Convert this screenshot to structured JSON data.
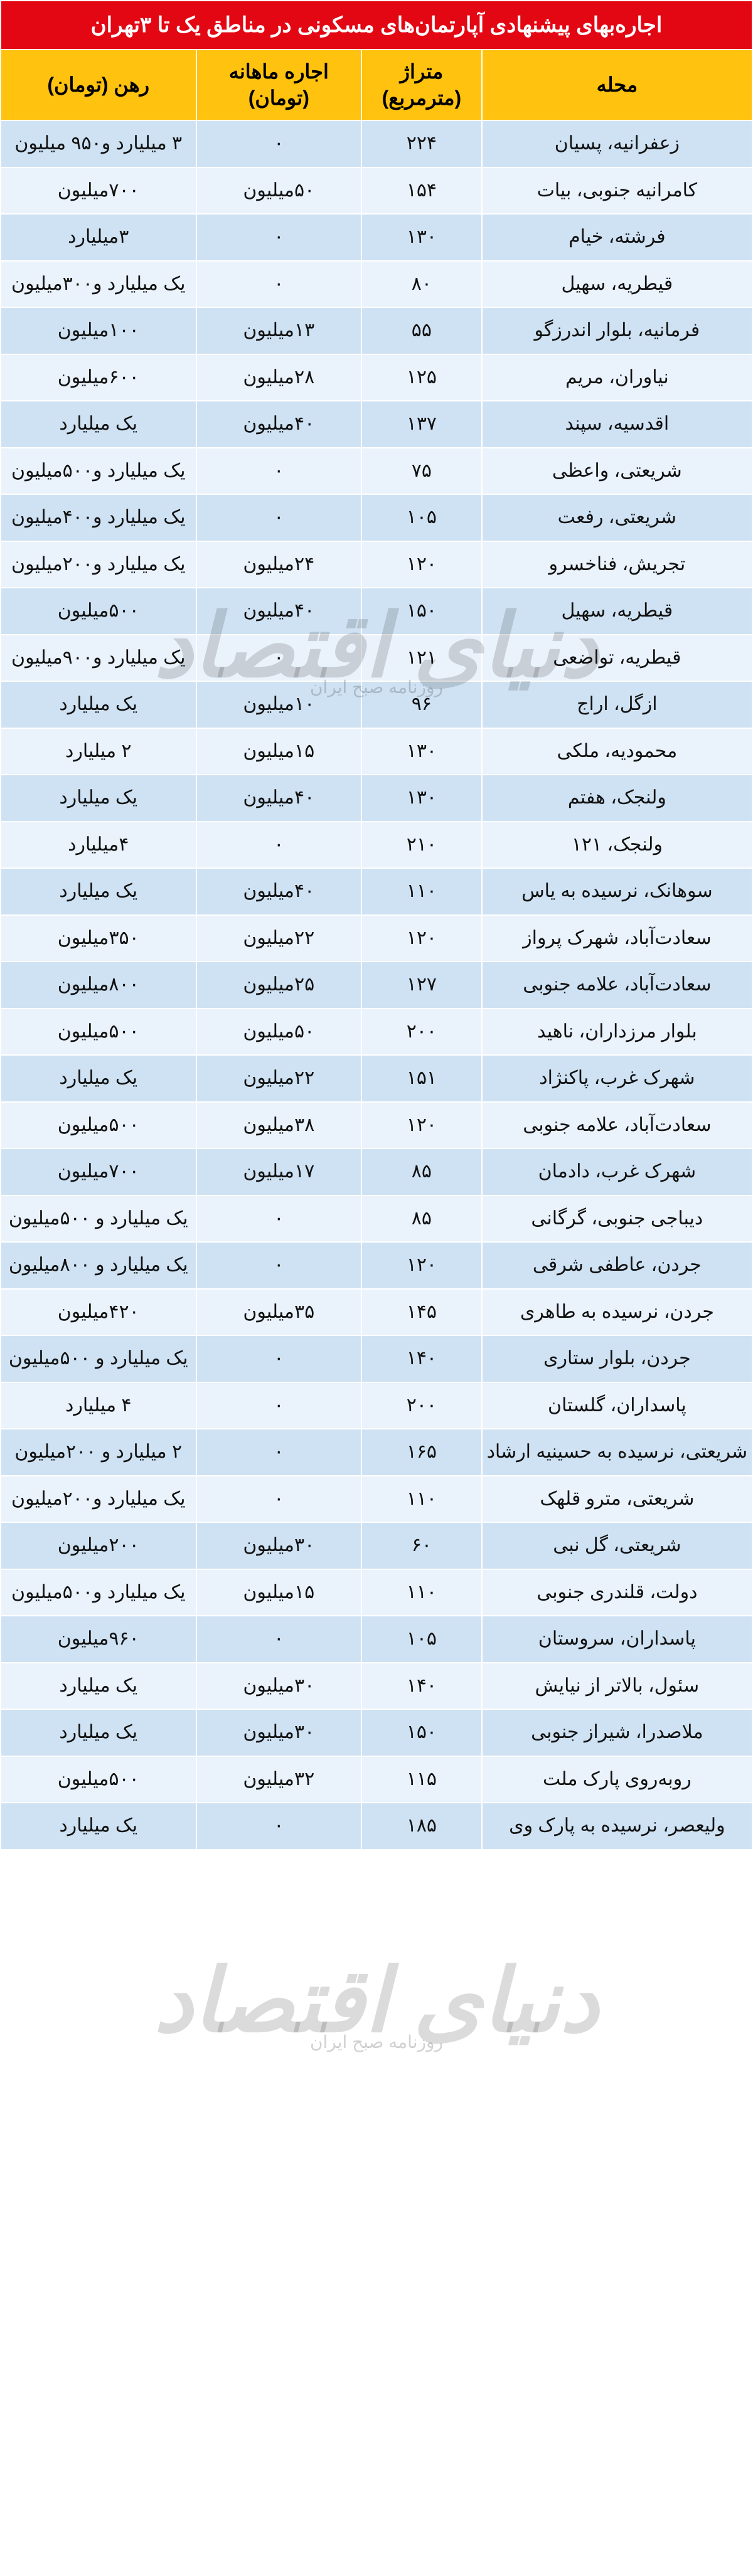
{
  "title": "اجاره‌بهای پیشنهادی آپارتمان‌های مسکونی در مناطق یک تا ۳تهران",
  "headers": {
    "neighborhood": "محله",
    "area": "متراژ (مترمربع)",
    "monthly_rent": "اجاره ماهانه (تومان)",
    "deposit": "رهن (تومان)"
  },
  "watermark": {
    "main": "دنیای اقتصاد",
    "sub": "روزنامه صبح ایران"
  },
  "colors": {
    "title_bg": "#e30613",
    "title_fg": "#ffffff",
    "header_bg": "#ffc20e",
    "row_even": "#cfe2f3",
    "row_odd": "#eaf2fb",
    "border": "#ffffff"
  },
  "rows": [
    {
      "n": "زعفرانیه، پسیان",
      "a": "۲۲۴",
      "r": "۰",
      "d": "۳ میلیارد و۹۵۰ میلیون"
    },
    {
      "n": "کامرانیه جنوبی، بیات",
      "a": "۱۵۴",
      "r": "۵۰میلیون",
      "d": "۷۰۰میلیون"
    },
    {
      "n": "فرشته، خیام",
      "a": "۱۳۰",
      "r": "۰",
      "d": "۳میلیارد"
    },
    {
      "n": "قیطریه، سهیل",
      "a": "۸۰",
      "r": "۰",
      "d": "یک میلیارد و۳۰۰میلیون"
    },
    {
      "n": "فرمانیه، بلوار اندرزگو",
      "a": "۵۵",
      "r": "۱۳میلیون",
      "d": "۱۰۰میلیون"
    },
    {
      "n": "نیاوران، مریم",
      "a": "۱۲۵",
      "r": "۲۸میلیون",
      "d": "۶۰۰میلیون"
    },
    {
      "n": "اقدسیه، سپند",
      "a": "۱۳۷",
      "r": "۴۰میلیون",
      "d": "یک میلیارد"
    },
    {
      "n": "شریعتی، واعظی",
      "a": "۷۵",
      "r": "۰",
      "d": "یک میلیارد و۵۰۰میلیون"
    },
    {
      "n": "شریعتی، رفعت",
      "a": "۱۰۵",
      "r": "۰",
      "d": "یک میلیارد و۴۰۰میلیون"
    },
    {
      "n": "تجریش، فناخسرو",
      "a": "۱۲۰",
      "r": "۲۴میلیون",
      "d": "یک میلیارد و۲۰۰میلیون"
    },
    {
      "n": "قیطریه، سهیل",
      "a": "۱۵۰",
      "r": "۴۰میلیون",
      "d": "۵۰۰میلیون"
    },
    {
      "n": "قیطریه، تواضعی",
      "a": "۱۲۱",
      "r": "۰",
      "d": "یک میلیارد و۹۰۰میلیون"
    },
    {
      "n": "ازگل، اراج",
      "a": "۹۶",
      "r": "۱۰میلیون",
      "d": "یک میلیارد"
    },
    {
      "n": "محمودیه، ملکی",
      "a": "۱۳۰",
      "r": "۱۵میلیون",
      "d": "۲ میلیارد"
    },
    {
      "n": "ولنجک، هفتم",
      "a": "۱۳۰",
      "r": "۴۰میلیون",
      "d": "یک میلیارد"
    },
    {
      "n": "ولنجک، ۱۲۱",
      "a": "۲۱۰",
      "r": "۰",
      "d": "۴میلیارد"
    },
    {
      "n": "سوهانک، نرسیده به یاس",
      "a": "۱۱۰",
      "r": "۴۰میلیون",
      "d": "یک میلیارد"
    },
    {
      "n": "سعادت‌آباد، شهرک پرواز",
      "a": "۱۲۰",
      "r": "۲۲میلیون",
      "d": "۳۵۰میلیون"
    },
    {
      "n": "سعادت‌آباد، علامه جنوبی",
      "a": "۱۲۷",
      "r": "۲۵میلیون",
      "d": "۸۰۰میلیون"
    },
    {
      "n": "بلوار مرزداران، ناهید",
      "a": "۲۰۰",
      "r": "۵۰میلیون",
      "d": "۵۰۰میلیون"
    },
    {
      "n": "شهرک غرب، پاکنژاد",
      "a": "۱۵۱",
      "r": "۲۲میلیون",
      "d": "یک میلیارد"
    },
    {
      "n": "سعادت‌آباد، علامه جنوبی",
      "a": "۱۲۰",
      "r": "۳۸میلیون",
      "d": "۵۰۰میلیون"
    },
    {
      "n": "شهرک غرب، دادمان",
      "a": "۸۵",
      "r": "۱۷میلیون",
      "d": "۷۰۰میلیون"
    },
    {
      "n": "دیباجی جنوبی، گرگانی",
      "a": "۸۵",
      "r": "۰",
      "d": "یک میلیارد و ۵۰۰میلیون"
    },
    {
      "n": "جردن، عاطفی شرقی",
      "a": "۱۲۰",
      "r": "۰",
      "d": "یک میلیارد و ۸۰۰میلیون"
    },
    {
      "n": "جردن، نرسیده به طاهری",
      "a": "۱۴۵",
      "r": "۳۵میلیون",
      "d": "۴۲۰میلیون"
    },
    {
      "n": "جردن، بلوار ستاری",
      "a": "۱۴۰",
      "r": "۰",
      "d": "یک میلیارد و ۵۰۰میلیون"
    },
    {
      "n": "پاسداران، گلستان",
      "a": "۲۰۰",
      "r": "۰",
      "d": "۴ میلیارد"
    },
    {
      "n": "شریعتی، نرسیده به حسینیه ارشاد",
      "a": "۱۶۵",
      "r": "۰",
      "d": "۲ میلیارد و ۲۰۰میلیون"
    },
    {
      "n": "شریعتی، مترو قلهک",
      "a": "۱۱۰",
      "r": "۰",
      "d": "یک میلیارد و۲۰۰میلیون"
    },
    {
      "n": "شریعتی، گل نبی",
      "a": "۶۰",
      "r": "۳۰میلیون",
      "d": "۲۰۰میلیون"
    },
    {
      "n": "دولت، قلندری جنوبی",
      "a": "۱۱۰",
      "r": "۱۵میلیون",
      "d": "یک میلیارد و۵۰۰میلیون"
    },
    {
      "n": "پاسداران، سروستان",
      "a": "۱۰۵",
      "r": "۰",
      "d": "۹۶۰میلیون"
    },
    {
      "n": "سئول، بالاتر از نیایش",
      "a": "۱۴۰",
      "r": "۳۰میلیون",
      "d": "یک میلیارد"
    },
    {
      "n": "ملاصدرا، شیراز جنوبی",
      "a": "۱۵۰",
      "r": "۳۰میلیون",
      "d": "یک میلیارد"
    },
    {
      "n": "روبه‌روی پارک ملت",
      "a": "۱۱۵",
      "r": "۳۲میلیون",
      "d": "۵۰۰میلیون"
    },
    {
      "n": "ولیعصر، نرسیده به پارک وی",
      "a": "۱۸۵",
      "r": "۰",
      "d": "یک میلیارد"
    }
  ]
}
